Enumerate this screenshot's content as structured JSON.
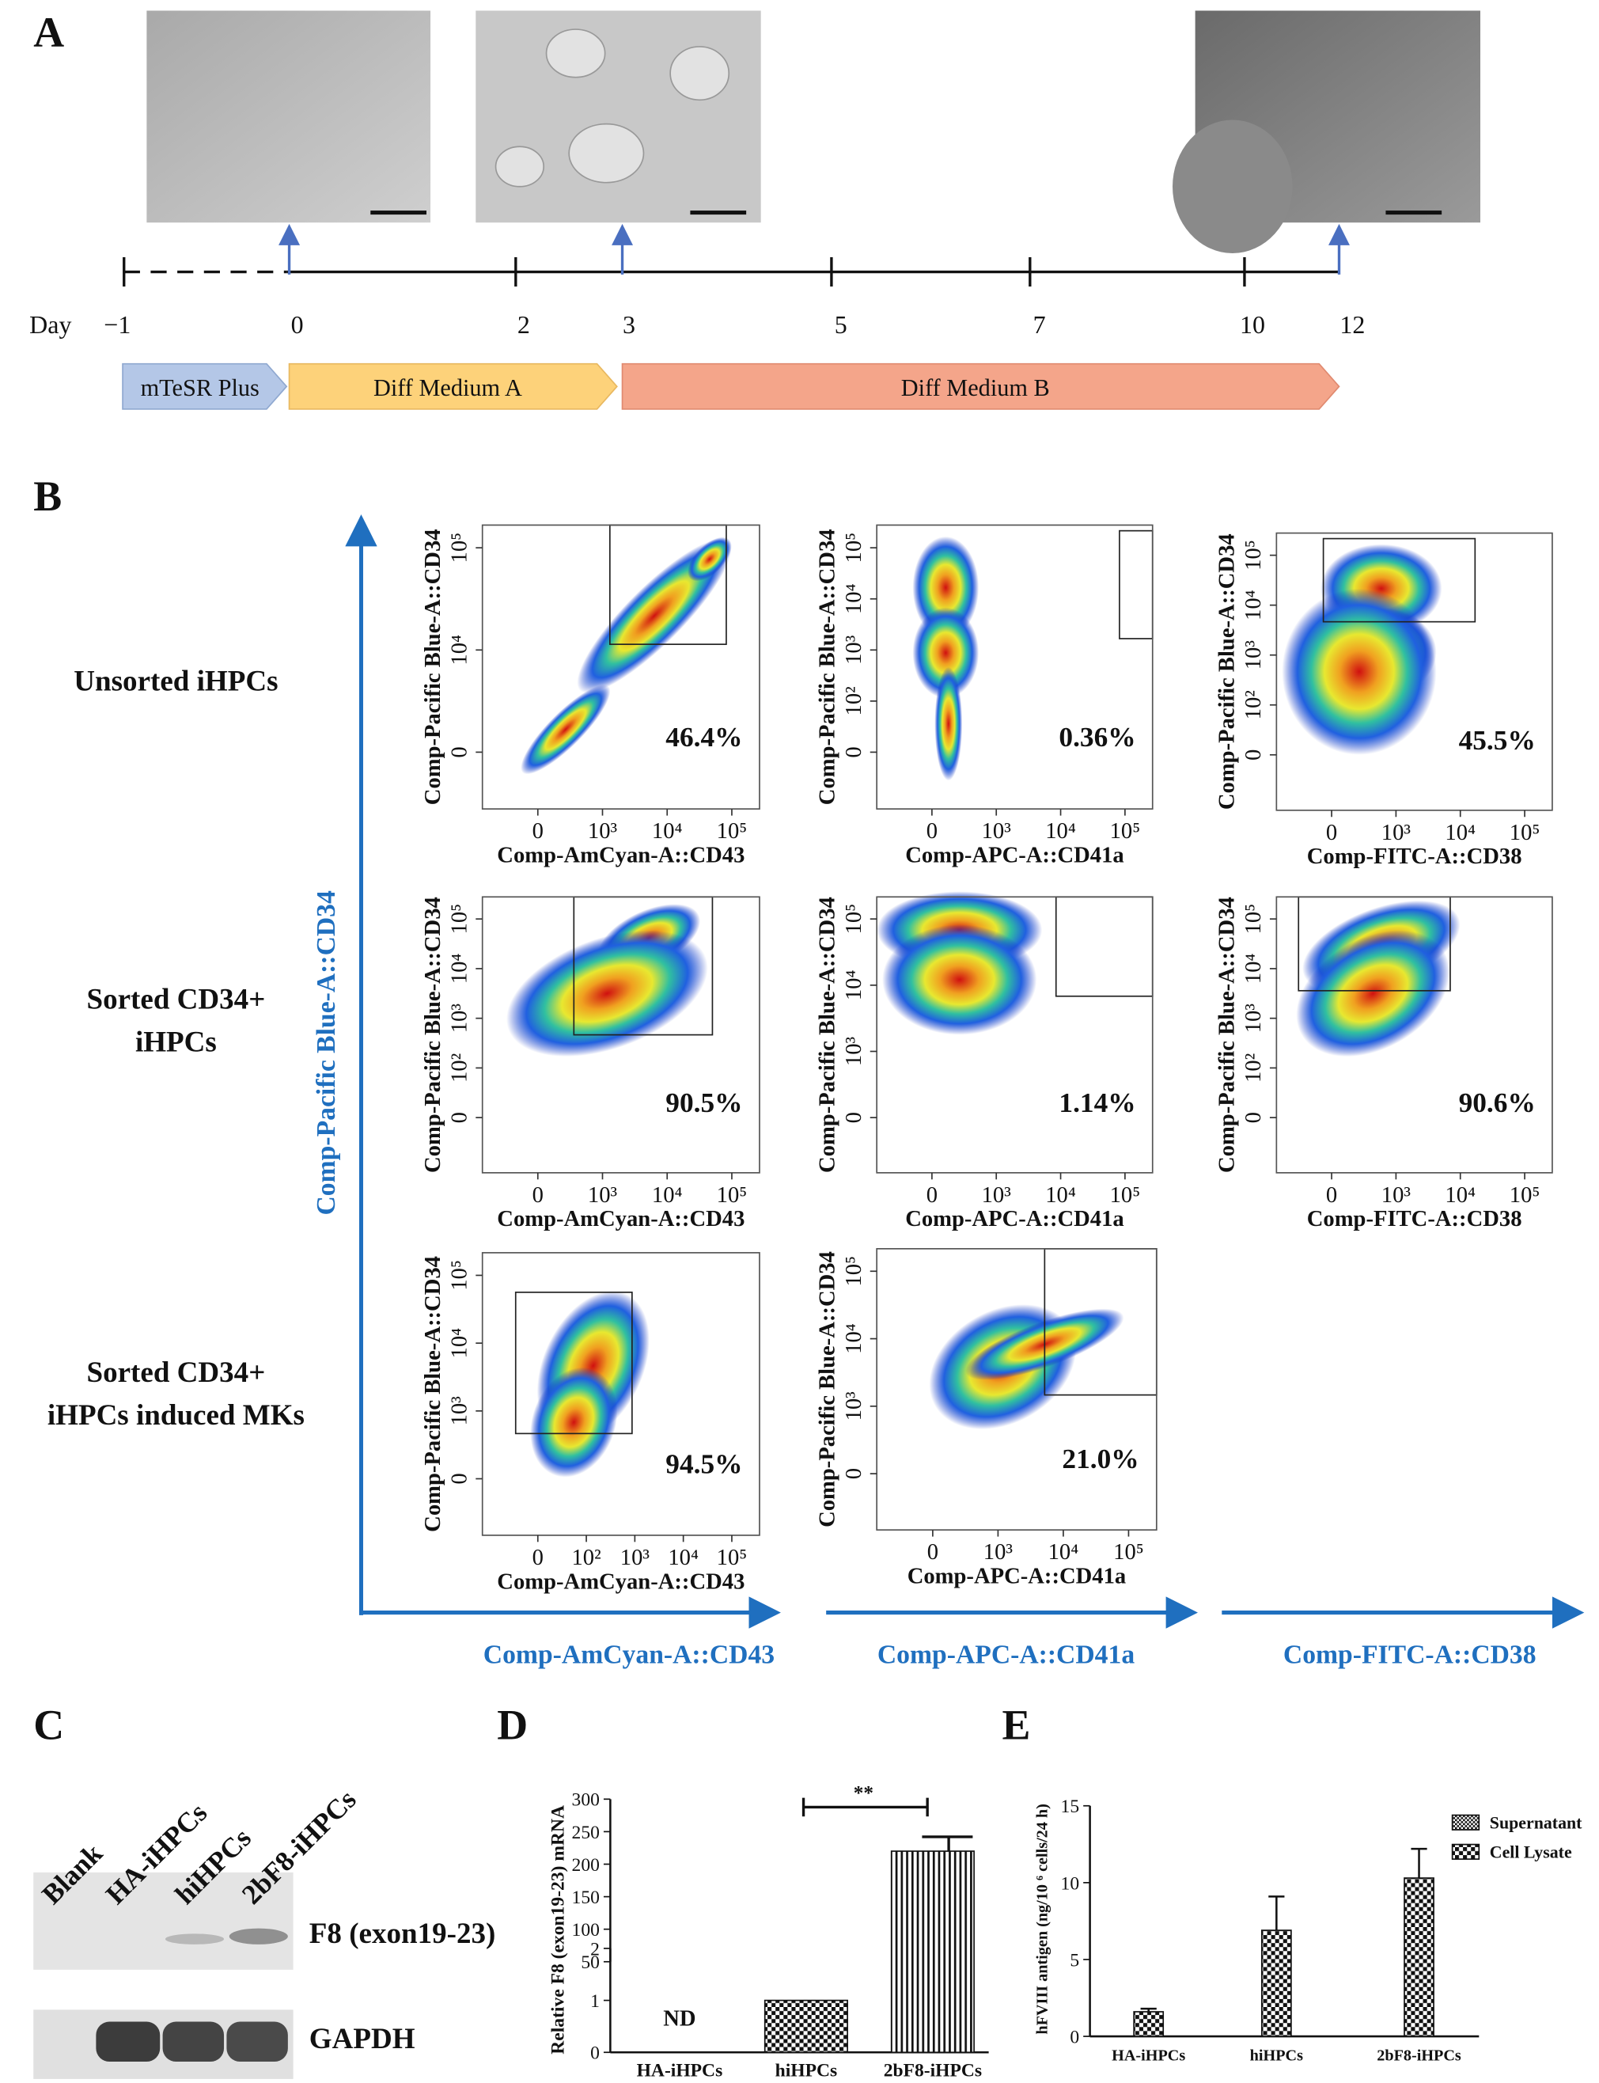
{
  "panel_labels": [
    "A",
    "B",
    "C",
    "D",
    "E"
  ],
  "timeline": {
    "day_label": "Day",
    "days": [
      "−1",
      "0",
      "2",
      "3",
      "5",
      "7",
      "10",
      "12"
    ],
    "stages": [
      "mTeSR Plus",
      "Diff Medium A",
      "Diff Medium B"
    ]
  },
  "flow": {
    "row_labels": [
      [
        "Unsorted iHPCs"
      ],
      [
        "Sorted CD34+",
        "iHPCs"
      ],
      [
        "Sorted CD34+",
        "iHPCs induced MKs"
      ]
    ],
    "y_axis_title": "Comp-Pacific Blue-A::CD34",
    "x_axis_titles": [
      "Comp-AmCyan-A::CD43",
      "Comp-APC-A::CD41a",
      "Comp-FITC-A::CD38"
    ],
    "plots": [
      {
        "ylabel": "Comp-Pacific Blue-A::CD34",
        "xlabel": "Comp-AmCyan-A::CD43",
        "percent": "46.4%",
        "xticks": [
          "0",
          "10³",
          "10⁴",
          "10⁵"
        ],
        "yticks": [
          "0",
          "10⁴",
          "10⁵"
        ]
      },
      {
        "ylabel": "Comp-Pacific Blue-A::CD34",
        "xlabel": "Comp-APC-A::CD41a",
        "percent": "0.36%",
        "xticks": [
          "0",
          "10³",
          "10⁴",
          "10⁵"
        ],
        "yticks": [
          "0",
          "10²",
          "10³",
          "10⁴",
          "10⁵"
        ]
      },
      {
        "ylabel": "Comp-Pacific Blue-A::CD34",
        "xlabel": "Comp-FITC-A::CD38",
        "percent": "45.5%",
        "xticks": [
          "0",
          "10³",
          "10⁴",
          "10⁵"
        ],
        "yticks": [
          "0",
          "10²",
          "10³",
          "10⁴",
          "10⁵"
        ]
      },
      {
        "ylabel": "Comp-Pacific Blue-A::CD34",
        "xlabel": "Comp-AmCyan-A::CD43",
        "percent": "90.5%",
        "xticks": [
          "0",
          "10³",
          "10⁴",
          "10⁵"
        ],
        "yticks": [
          "0",
          "10²",
          "10³",
          "10⁴",
          "10⁵"
        ]
      },
      {
        "ylabel": "Comp-Pacific Blue-A::CD34",
        "xlabel": "Comp-APC-A::CD41a",
        "percent": "1.14%",
        "xticks": [
          "0",
          "10³",
          "10⁴",
          "10⁵"
        ],
        "yticks": [
          "0",
          "10³",
          "10⁴",
          "10⁵"
        ]
      },
      {
        "ylabel": "Comp-Pacific Blue-A::CD34",
        "xlabel": "Comp-FITC-A::CD38",
        "percent": "90.6%",
        "xticks": [
          "0",
          "10³",
          "10⁴",
          "10⁵"
        ],
        "yticks": [
          "0",
          "10²",
          "10³",
          "10⁴",
          "10⁵"
        ]
      },
      {
        "ylabel": "Comp-Pacific Blue-A::CD34",
        "xlabel": "Comp-AmCyan-A::CD43",
        "percent": "94.5%",
        "xticks": [
          "0",
          "10²",
          "10³",
          "10⁴",
          "10⁵"
        ],
        "yticks": [
          "0",
          "10³",
          "10⁴",
          "10⁵"
        ]
      },
      {
        "ylabel": "Comp-Pacific Blue-A::CD34",
        "xlabel": "Comp-APC-A::CD41a",
        "percent": "21.0%",
        "xticks": [
          "0",
          "10³",
          "10⁴",
          "10⁵"
        ],
        "yticks": [
          "0",
          "10³",
          "10⁴",
          "10⁵"
        ]
      }
    ]
  },
  "blot": {
    "lanes": [
      "Blank",
      "HA-iHPCs",
      "hiHPCs",
      "2bF8-iHPCs"
    ],
    "bands": [
      "F8 (exon19-23)",
      "GAPDH"
    ]
  },
  "chart_data": [
    {
      "type": "bar",
      "ylabel": "Relative F8 (exon19-23) mRNA",
      "categories": [
        "HA-iHPCs",
        "hiHPCs",
        "2bF8-iHPCs"
      ],
      "values": [
        null,
        1,
        220
      ],
      "errors": [
        null,
        null,
        22
      ],
      "annotations": [
        "ND",
        "**"
      ],
      "ylim": [
        0,
        300
      ],
      "axis_break": [
        2,
        50
      ],
      "yticks": [
        0,
        1,
        2,
        50,
        100,
        150,
        200,
        250,
        300
      ]
    },
    {
      "type": "bar",
      "ylabel": "hFVIII antigen (ng/10 ⁶ cells/24 h)",
      "categories": [
        "HA-iHPCs",
        "hiHPCs",
        "2bF8-iHPCs"
      ],
      "series": [
        {
          "name": "Supernatant",
          "values": [
            null,
            null,
            null
          ]
        },
        {
          "name": "Cell Lysate",
          "values": [
            1.6,
            6.9,
            10.3
          ],
          "errors": [
            0.2,
            2.2,
            1.9
          ]
        }
      ],
      "ylim": [
        0,
        15
      ],
      "yticks": [
        0,
        5,
        10,
        15
      ]
    }
  ]
}
